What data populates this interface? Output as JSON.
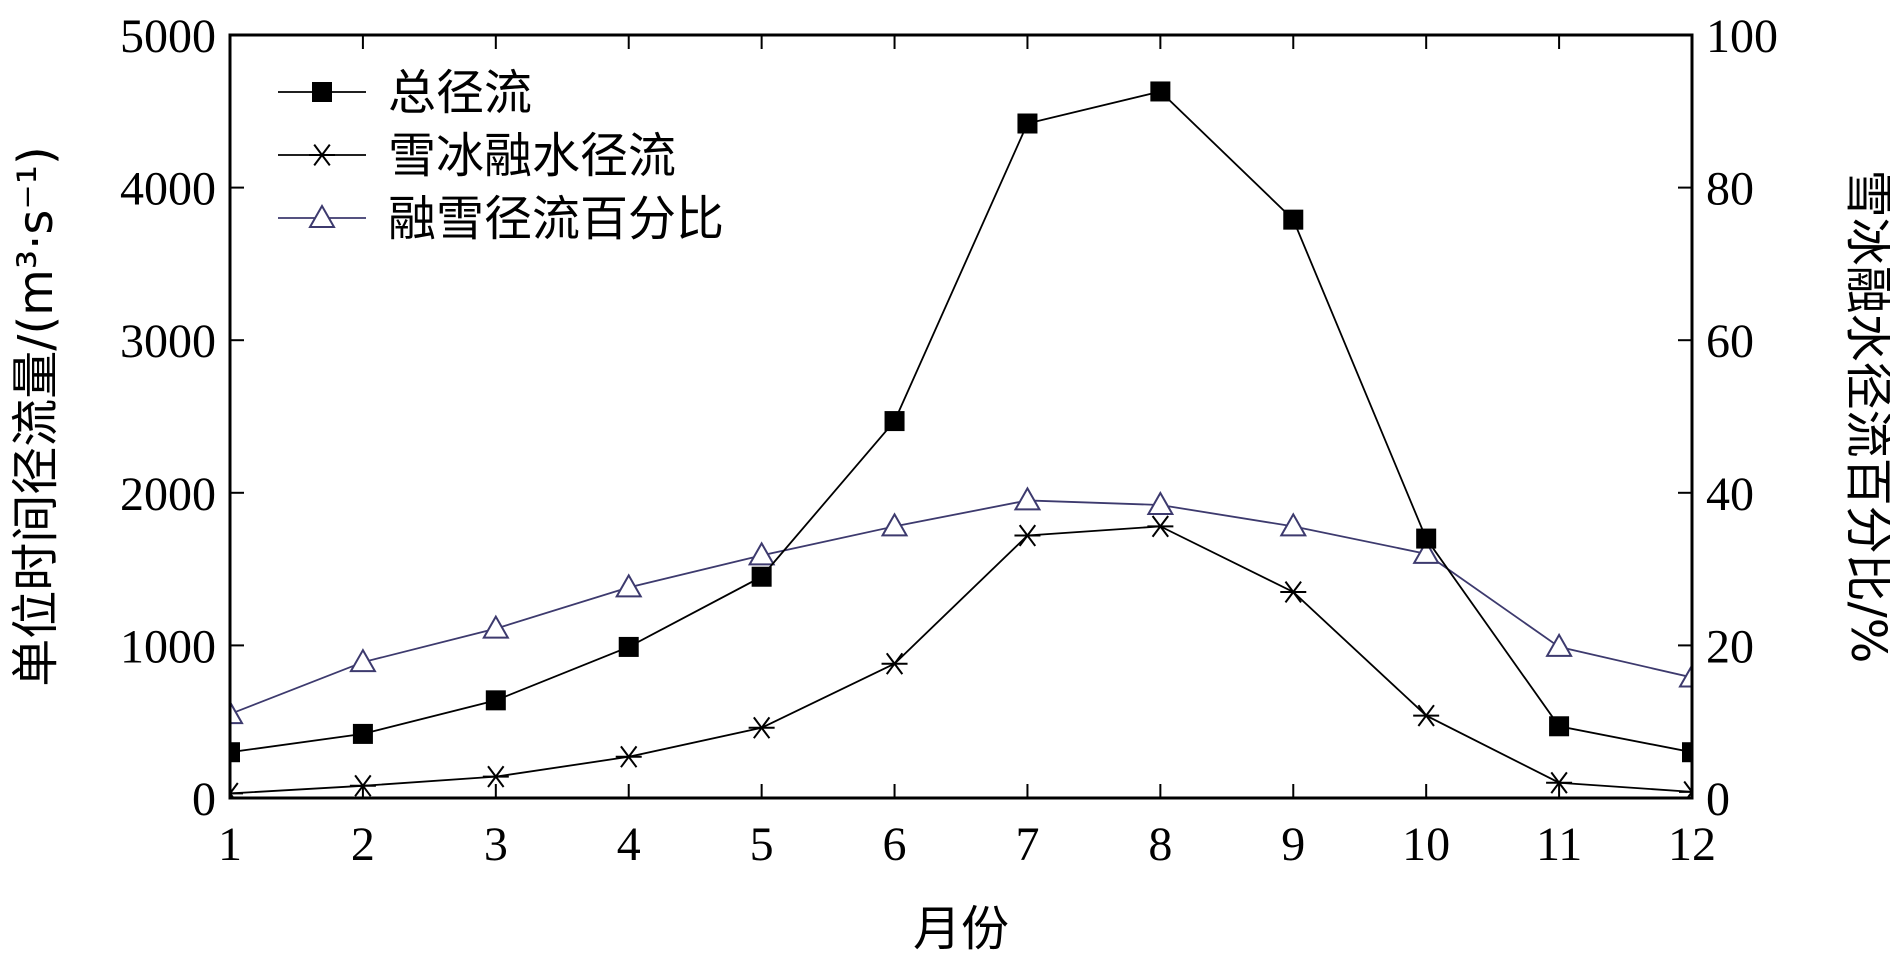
{
  "chart_data": {
    "type": "line",
    "x": [
      1,
      2,
      3,
      4,
      5,
      6,
      7,
      8,
      9,
      10,
      11,
      12
    ],
    "xlabel": "月份",
    "xlim": [
      1,
      12
    ],
    "xticks": [
      "1",
      "2",
      "3",
      "4",
      "5",
      "6",
      "7",
      "8",
      "9",
      "10",
      "11",
      "12"
    ],
    "ylabel_left": "单位时间径流量/(m³·s⁻¹)",
    "ylim_left": [
      0,
      5000
    ],
    "yticks_left": [
      "0",
      "1000",
      "2000",
      "3000",
      "4000",
      "5000"
    ],
    "ylabel_right": "雪冰融水径流百分比/%",
    "ylim_right": [
      0,
      100
    ],
    "yticks_right": [
      "0",
      "20",
      "40",
      "60",
      "80",
      "100"
    ],
    "grid": false,
    "legend_position": "top-left",
    "series": [
      {
        "name": "总径流",
        "axis": "left",
        "marker": "filled-square",
        "color": "#000000",
        "values": [
          300,
          420,
          640,
          990,
          1450,
          2470,
          4420,
          4630,
          3790,
          1700,
          470,
          300
        ]
      },
      {
        "name": "雪冰融水径流",
        "axis": "left",
        "marker": "asterisk",
        "color": "#000000",
        "values": [
          30,
          80,
          140,
          270,
          460,
          880,
          1720,
          1780,
          1350,
          540,
          100,
          40
        ]
      },
      {
        "name": "融雪径流百分比",
        "axis": "right",
        "marker": "open-triangle",
        "color": "#3d3a6e",
        "values": [
          11,
          17.8,
          22.2,
          27.6,
          31.8,
          35.6,
          39,
          38.4,
          35.6,
          32,
          19.8,
          15.8
        ]
      }
    ]
  }
}
